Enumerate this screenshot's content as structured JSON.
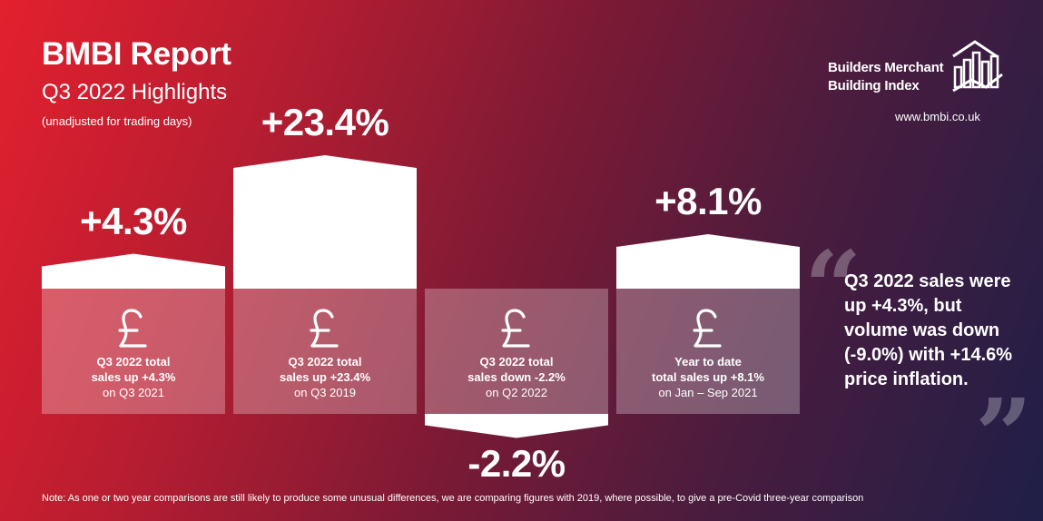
{
  "header": {
    "title": "BMBI Report",
    "subtitle": "Q3 2022 Highlights",
    "note": "(unadjusted for trading days)"
  },
  "logo": {
    "line1": "Builders Merchant",
    "line2": "Building Index",
    "website": "www.bmbi.co.uk"
  },
  "quote": {
    "text": "Q3 2022 sales were up +4.3%, but volume was down (-9.0%) with +14.6% price inflation."
  },
  "footnote": "Note: As one or two year comparisons are still likely to produce some unusual differences, we are comparing figures with 2019, where possible, to give a pre-Covid three-year comparison",
  "colors": {
    "bg_left": "#e3202e",
    "bg_right": "#1f1f47",
    "bar": "#ffffff",
    "panel": "rgba(255,255,255,0.28)"
  },
  "icons": [
    "pound-icon"
  ],
  "chart_data": {
    "type": "bar",
    "categories": [
      "Q3 2022 vs Q3 2021",
      "Q3 2022 vs Q3 2019",
      "Q3 2022 vs Q2 2022",
      "YTD vs Jan – Sep 2021"
    ],
    "values": [
      4.3,
      23.4,
      -2.2,
      8.1
    ],
    "value_labels": [
      "+4.3%",
      "+23.4%",
      "-2.2%",
      "+8.1%"
    ],
    "panels": [
      {
        "line1": "Q3 2022 total",
        "line2": "sales up +4.3%",
        "line3": "on Q3 2021"
      },
      {
        "line1": "Q3 2022 total",
        "line2": "sales up +23.4%",
        "line3": "on Q3 2019"
      },
      {
        "line1": "Q3 2022 total",
        "line2": "sales down -2.2%",
        "line3": "on Q2 2022"
      },
      {
        "line1": "Year to date",
        "line2": "total sales up +8.1%",
        "line3": "on Jan – Sep 2021"
      }
    ],
    "title": "",
    "xlabel": "",
    "ylabel": "",
    "grid": false,
    "legend": "none"
  }
}
